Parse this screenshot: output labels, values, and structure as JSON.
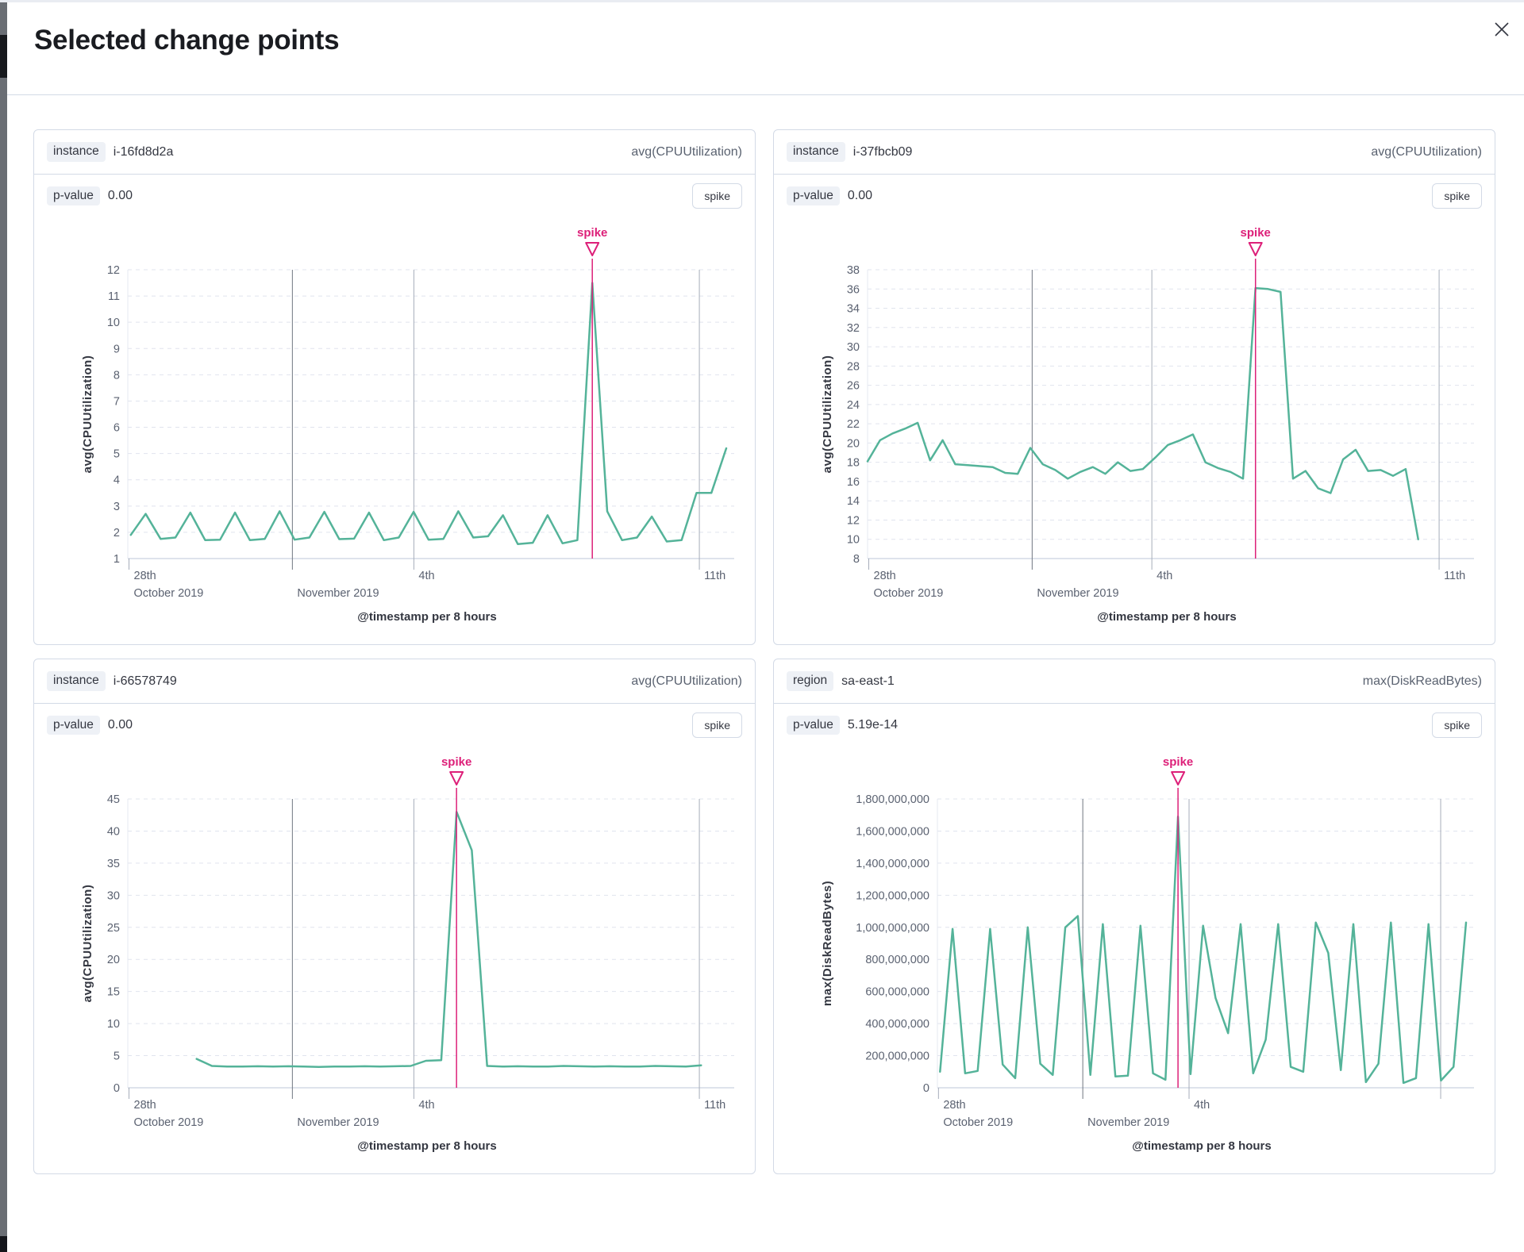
{
  "modal": {
    "title": "Selected change points"
  },
  "colors": {
    "series_green": "#54b399",
    "annotation_pink": "#dd2079",
    "grid_dashed": "#e0e4ee",
    "axis_line": "#d3dae6",
    "vline_strong": "#6f7680",
    "vline_light": "#a6adba",
    "tick_text": "#5b6271",
    "axis_title_text": "#343741"
  },
  "charts": [
    {
      "key_label": "instance",
      "key_value": "i-16fd8d2a",
      "metric": "avg(CPUUtilization)",
      "p_value_label": "p-value",
      "p_value": "0.00",
      "action_label": "spike",
      "chart_data": {
        "type": "line",
        "annotation_label": "spike",
        "xlabel": "@timestamp per 8 hours",
        "ylabel": "avg(CPUUtilization)",
        "y_min": 1,
        "y_max": 12,
        "y_tick_step": 1,
        "y_format": "plain",
        "x_ticks": [
          {
            "f": 0.002,
            "top": "28th",
            "bottom": "October 2019",
            "tick": true,
            "grid": false,
            "strong": false
          },
          {
            "f": 0.275,
            "top": "",
            "bottom": "November 2019",
            "tick": false,
            "grid": true,
            "strong": true
          },
          {
            "f": 0.478,
            "top": "4th",
            "bottom": "",
            "tick": false,
            "grid": true,
            "strong": false
          },
          {
            "f": 0.955,
            "top": "11th",
            "bottom": "",
            "tick": false,
            "grid": true,
            "strong": false
          }
        ],
        "series_start_f": 0.005,
        "series_end_f": 1.0,
        "values": [
          1.9,
          2.7,
          1.75,
          1.8,
          2.75,
          1.7,
          1.72,
          2.75,
          1.7,
          1.75,
          2.8,
          1.72,
          1.8,
          2.78,
          1.74,
          1.76,
          2.75,
          1.7,
          1.8,
          2.78,
          1.72,
          1.75,
          2.8,
          1.8,
          1.85,
          2.65,
          1.55,
          1.6,
          2.65,
          1.58,
          1.7,
          11.5,
          2.8,
          1.7,
          1.8,
          2.6,
          1.65,
          1.7,
          3.5,
          3.5,
          5.2
        ],
        "spike_index": 31
      }
    },
    {
      "key_label": "instance",
      "key_value": "i-37fbcb09",
      "metric": "avg(CPUUtilization)",
      "p_value_label": "p-value",
      "p_value": "0.00",
      "action_label": "spike",
      "chart_data": {
        "type": "line",
        "annotation_label": "spike",
        "xlabel": "@timestamp per 8 hours",
        "ylabel": "avg(CPUUtilization)",
        "y_min": 8,
        "y_max": 38,
        "y_tick_step": 2,
        "y_format": "plain",
        "x_ticks": [
          {
            "f": 0.002,
            "top": "28th",
            "bottom": "October 2019",
            "tick": true,
            "grid": false,
            "strong": false
          },
          {
            "f": 0.275,
            "top": "",
            "bottom": "November 2019",
            "tick": false,
            "grid": true,
            "strong": true
          },
          {
            "f": 0.475,
            "top": "4th",
            "bottom": "",
            "tick": false,
            "grid": true,
            "strong": false
          },
          {
            "f": 0.955,
            "top": "11th",
            "bottom": "",
            "tick": false,
            "grid": true,
            "strong": false
          }
        ],
        "series_start_f": 0.0,
        "series_end_f": 0.92,
        "values": [
          18.1,
          20.3,
          21.0,
          21.5,
          22.1,
          18.2,
          20.3,
          17.8,
          17.7,
          17.6,
          17.5,
          16.9,
          16.8,
          19.5,
          17.8,
          17.2,
          16.3,
          17.0,
          17.5,
          16.8,
          18.0,
          17.1,
          17.3,
          18.5,
          19.8,
          20.3,
          20.9,
          18.0,
          17.4,
          17.0,
          16.3,
          36.1,
          36.0,
          35.7,
          16.3,
          17.1,
          15.3,
          14.8,
          18.3,
          19.3,
          17.1,
          17.2,
          16.6,
          17.3,
          10.0
        ],
        "spike_index": 31
      }
    },
    {
      "key_label": "instance",
      "key_value": "i-66578749",
      "metric": "avg(CPUUtilization)",
      "p_value_label": "p-value",
      "p_value": "0.00",
      "action_label": "spike",
      "chart_data": {
        "type": "line",
        "annotation_label": "spike",
        "xlabel": "@timestamp per 8 hours",
        "ylabel": "avg(CPUUtilization)",
        "y_min": 0,
        "y_max": 45,
        "y_tick_step": 5,
        "y_format": "plain",
        "x_ticks": [
          {
            "f": 0.002,
            "top": "28th",
            "bottom": "October 2019",
            "tick": true,
            "grid": false,
            "strong": false
          },
          {
            "f": 0.275,
            "top": "",
            "bottom": "November 2019",
            "tick": false,
            "grid": true,
            "strong": true
          },
          {
            "f": 0.478,
            "top": "4th",
            "bottom": "",
            "tick": false,
            "grid": true,
            "strong": false
          },
          {
            "f": 0.955,
            "top": "11th",
            "bottom": "",
            "tick": false,
            "grid": true,
            "strong": false
          }
        ],
        "series_start_f": 0.115,
        "series_end_f": 0.958,
        "values": [
          4.5,
          3.4,
          3.3,
          3.3,
          3.35,
          3.3,
          3.35,
          3.3,
          3.25,
          3.3,
          3.3,
          3.35,
          3.3,
          3.35,
          3.4,
          4.2,
          4.3,
          43,
          37,
          3.4,
          3.3,
          3.35,
          3.3,
          3.3,
          3.4,
          3.35,
          3.3,
          3.35,
          3.3,
          3.3,
          3.4,
          3.35,
          3.3,
          3.5
        ],
        "spike_index": 17
      }
    },
    {
      "key_label": "region",
      "key_value": "sa-east-1",
      "metric": "max(DiskReadBytes)",
      "p_value_label": "p-value",
      "p_value": "5.19e-14",
      "action_label": "spike",
      "chart_data": {
        "type": "line",
        "annotation_label": "spike",
        "xlabel": "@timestamp per 8 hours",
        "ylabel": "max(DiskReadBytes)",
        "y_min": 0,
        "y_max": 1800000000,
        "y_tick_step": 200000000,
        "y_format": "comma",
        "x_ticks": [
          {
            "f": 0.002,
            "top": "28th",
            "bottom": "October 2019",
            "tick": true,
            "grid": false,
            "strong": false
          },
          {
            "f": 0.275,
            "top": "",
            "bottom": "November 2019",
            "tick": false,
            "grid": true,
            "strong": true
          },
          {
            "f": 0.476,
            "top": "4th",
            "bottom": "",
            "tick": false,
            "grid": true,
            "strong": false
          },
          {
            "f": 0.952,
            "top": "",
            "bottom": "",
            "tick": false,
            "grid": true,
            "strong": false
          }
        ],
        "series_start_f": 0.005,
        "series_end_f": 1.0,
        "values": [
          100000000,
          990000000,
          90000000,
          105000000,
          990000000,
          145000000,
          60000000,
          1000000000,
          150000000,
          80000000,
          1000000000,
          1070000000,
          80000000,
          1020000000,
          70000000,
          75000000,
          1010000000,
          90000000,
          50000000,
          1690000000,
          85000000,
          1010000000,
          560000000,
          340000000,
          1020000000,
          90000000,
          300000000,
          1020000000,
          130000000,
          100000000,
          1030000000,
          840000000,
          110000000,
          1020000000,
          35000000,
          150000000,
          1030000000,
          30000000,
          60000000,
          1020000000,
          45000000,
          130000000,
          1030000000
        ],
        "spike_index": 19
      }
    }
  ]
}
